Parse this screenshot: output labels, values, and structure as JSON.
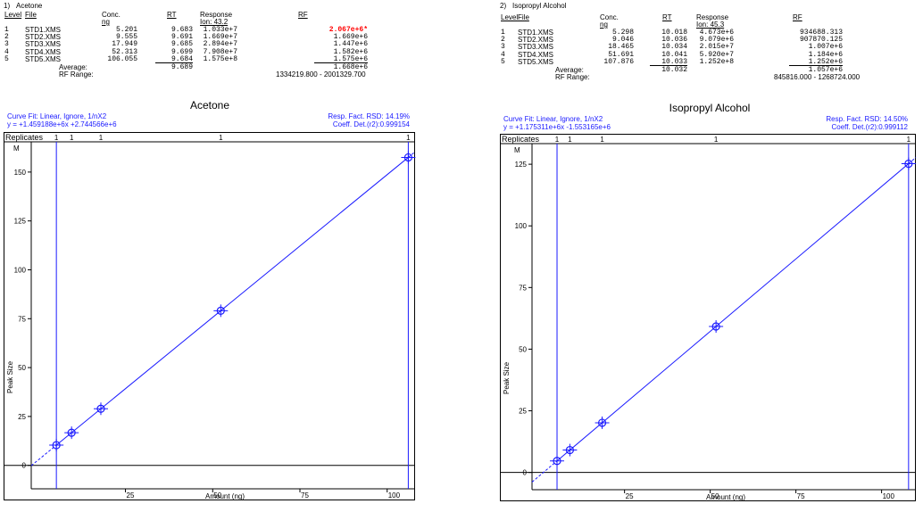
{
  "colors": {
    "line": "#1a1aff",
    "flag": "#ff0000",
    "text": "#000000",
    "axis": "#000000"
  },
  "panels": [
    {
      "header": {
        "num": "1)",
        "compound": "Acetone"
      },
      "columns": {
        "level": "Level",
        "file": "File",
        "conc": "Conc.",
        "conc_unit": "ng",
        "rt": "RT",
        "response": "Response",
        "ion": "Ion: 43.2",
        "rf": "RF"
      },
      "rows": [
        {
          "level": "1",
          "file": "STD1.XMS",
          "conc": "5.201",
          "rt": "9.683",
          "response": "1.033e+7",
          "rf": "2.067e+6*",
          "flag": true
        },
        {
          "level": "2",
          "file": "STD2.XMS",
          "conc": "9.555",
          "rt": "9.691",
          "response": "1.669e+7",
          "rf": "1.669e+6",
          "flag": false
        },
        {
          "level": "3",
          "file": "STD3.XMS",
          "conc": "17.949",
          "rt": "9.685",
          "response": "2.894e+7",
          "rf": "1.447e+6",
          "flag": false
        },
        {
          "level": "4",
          "file": "STD4.XMS",
          "conc": "52.313",
          "rt": "9.699",
          "response": "7.908e+7",
          "rf": "1.582e+6",
          "flag": false
        },
        {
          "level": "5",
          "file": "STD5.XMS",
          "conc": "106.055",
          "rt": "9.684",
          "response": "1.575e+8",
          "rf": "1.575e+6",
          "flag": false
        }
      ],
      "average_label": "Average:",
      "average_rt": "9.689",
      "average_rf": "1.668e+6",
      "rf_range_label": "RF Range:",
      "rf_range": "1334219.800 - 2001329.700",
      "curve_fit": "Curve Fit: Linear,   Ignore,   1/nX2",
      "equation": "y =   +1.459188e+6x   +2.744566e+6",
      "rsd": "Resp. Fact. RSD:  14.19%",
      "coeff": "Coeff. Det.(r2):0.999154",
      "replicates_label": "Replicates",
      "replicates": [
        "1",
        "1",
        "1",
        "1",
        "1"
      ],
      "multiplier": "M"
    },
    {
      "header": {
        "num": "2)",
        "compound": "Isopropyl Alcohol"
      },
      "columns": {
        "level": "Level",
        "file": "File",
        "conc": "Conc.",
        "conc_unit": "ng",
        "rt": "RT",
        "response": "Response",
        "ion": "Ion: 45.3",
        "rf": "RF"
      },
      "rows": [
        {
          "level": "1",
          "file": "STD1.XMS",
          "conc": "5.298",
          "rt": "10.018",
          "response": "4.673e+6",
          "rf": "934688.313",
          "flag": false
        },
        {
          "level": "2",
          "file": "STD2.XMS",
          "conc": "9.046",
          "rt": "10.036",
          "response": "9.079e+6",
          "rf": "907870.125",
          "flag": false
        },
        {
          "level": "3",
          "file": "STD3.XMS",
          "conc": "18.465",
          "rt": "10.034",
          "response": "2.015e+7",
          "rf": "1.007e+6",
          "flag": false
        },
        {
          "level": "4",
          "file": "STD4.XMS",
          "conc": "51.691",
          "rt": "10.041",
          "response": "5.920e+7",
          "rf": "1.184e+6",
          "flag": false
        },
        {
          "level": "5",
          "file": "STD5.XMS",
          "conc": "107.876",
          "rt": "10.033",
          "response": "1.252e+8",
          "rf": "1.252e+6",
          "flag": false
        }
      ],
      "average_label": "Average:",
      "average_rt": "10.032",
      "average_rf": "1.057e+6",
      "rf_range_label": "RF Range:",
      "rf_range": "845816.000 - 1268724.000",
      "curve_fit": "Curve Fit: Linear,   Ignore,   1/nX2",
      "equation": "y =   +1.175311e+6x   -1.553165e+6",
      "rsd": "Resp. Fact. RSD:  14.50%",
      "coeff": "Coeff. Det.(r2):0.999112",
      "replicates_label": "Replicates",
      "replicates": [
        "1",
        "1",
        "1",
        "1",
        "1"
      ],
      "multiplier": "M"
    }
  ],
  "chart_data": [
    {
      "type": "scatter",
      "title": "Acetone",
      "xlabel": "Amount (ng)",
      "ylabel": "Peak Size",
      "xlim": [
        -2,
        108
      ],
      "ylim": [
        -12,
        165
      ],
      "xticks": [
        25,
        50,
        75,
        100
      ],
      "yticks": [
        0,
        25,
        50,
        75,
        100,
        125,
        150
      ],
      "points": [
        {
          "x": 5.201,
          "y": 10.33
        },
        {
          "x": 9.555,
          "y": 16.69
        },
        {
          "x": 17.949,
          "y": 28.94
        },
        {
          "x": 52.313,
          "y": 79.08
        },
        {
          "x": 106.055,
          "y": 157.5
        }
      ],
      "fit": {
        "slope": 1.459188,
        "intercept": 2.744566
      },
      "vlines": [
        5.201,
        106.055
      ]
    },
    {
      "type": "scatter",
      "title": "Isopropyl Alcohol",
      "xlabel": "Amount (ng)",
      "ylabel": "Peak Size",
      "xlim": [
        -2,
        110
      ],
      "ylim": [
        -7,
        133
      ],
      "xticks": [
        25,
        50,
        75,
        100
      ],
      "yticks": [
        0,
        25,
        50,
        75,
        100,
        125
      ],
      "points": [
        {
          "x": 5.298,
          "y": 4.673
        },
        {
          "x": 9.046,
          "y": 9.079
        },
        {
          "x": 18.465,
          "y": 20.15
        },
        {
          "x": 51.691,
          "y": 59.2
        },
        {
          "x": 107.876,
          "y": 125.2
        }
      ],
      "fit": {
        "slope": 1.175311,
        "intercept": -1.553165
      },
      "vlines": [
        5.298,
        107.876
      ]
    }
  ]
}
